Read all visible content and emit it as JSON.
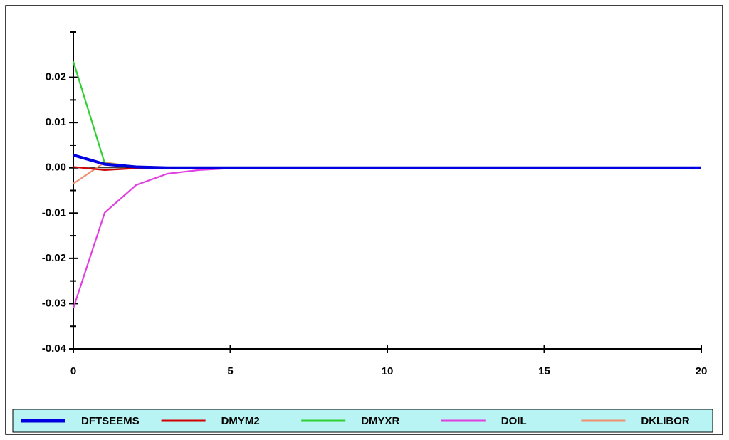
{
  "chart_data": {
    "type": "line",
    "x": [
      0,
      1,
      2,
      3,
      4,
      5,
      6,
      7,
      8,
      9,
      10,
      11,
      12,
      13,
      14,
      15,
      16,
      17,
      18,
      19,
      20
    ],
    "series": [
      {
        "name": "DFTSEEMS",
        "color": "#0000e0",
        "values": [
          0.0028,
          0.0008,
          0.0002,
          0,
          0,
          0,
          0,
          0,
          0,
          0,
          0,
          0,
          0,
          0,
          0,
          0,
          0,
          0,
          0,
          0,
          0
        ]
      },
      {
        "name": "DMYM2",
        "color": "#d00000",
        "values": [
          0.0002,
          -0.0005,
          -0.0001,
          0,
          0,
          0,
          0,
          0,
          0,
          0,
          0,
          0,
          0,
          0,
          0,
          0,
          0,
          0,
          0,
          0,
          0
        ]
      },
      {
        "name": "DMYXR",
        "color": "#30d030",
        "values": [
          0.0235,
          0.001,
          0.0003,
          0.0001,
          0,
          0,
          0,
          0,
          0,
          0,
          0,
          0,
          0,
          0,
          0,
          0,
          0,
          0,
          0,
          0,
          0
        ]
      },
      {
        "name": "DOIL",
        "color": "#e040e0",
        "values": [
          -0.031,
          -0.0099,
          -0.0038,
          -0.0013,
          -0.0005,
          -0.0001,
          0,
          0,
          0,
          0,
          0,
          0,
          0,
          0,
          0,
          0,
          0,
          0,
          0,
          0,
          0
        ]
      },
      {
        "name": "DKLIBOR",
        "color": "#f09070",
        "values": [
          -0.0035,
          0.0012,
          0.0002,
          0,
          0,
          0,
          0,
          0,
          0,
          0,
          0,
          0,
          0,
          0,
          0,
          0,
          0,
          0,
          0,
          0,
          0
        ]
      }
    ],
    "xlim": [
      0,
      20
    ],
    "xticks": [
      0,
      5,
      10,
      15,
      20
    ],
    "ylim": [
      -0.04,
      0.03
    ],
    "yticks": [
      {
        "value": -0.04,
        "label": "-0.04"
      },
      {
        "value": -0.03,
        "label": "-0.03"
      },
      {
        "value": -0.02,
        "label": "-0.02"
      },
      {
        "value": -0.01,
        "label": "-0.01"
      },
      {
        "value": 0,
        "label": "0.00"
      },
      {
        "value": 0.01,
        "label": "0.01"
      },
      {
        "value": 0.02,
        "label": "0.02"
      }
    ],
    "legend": "bottom"
  }
}
